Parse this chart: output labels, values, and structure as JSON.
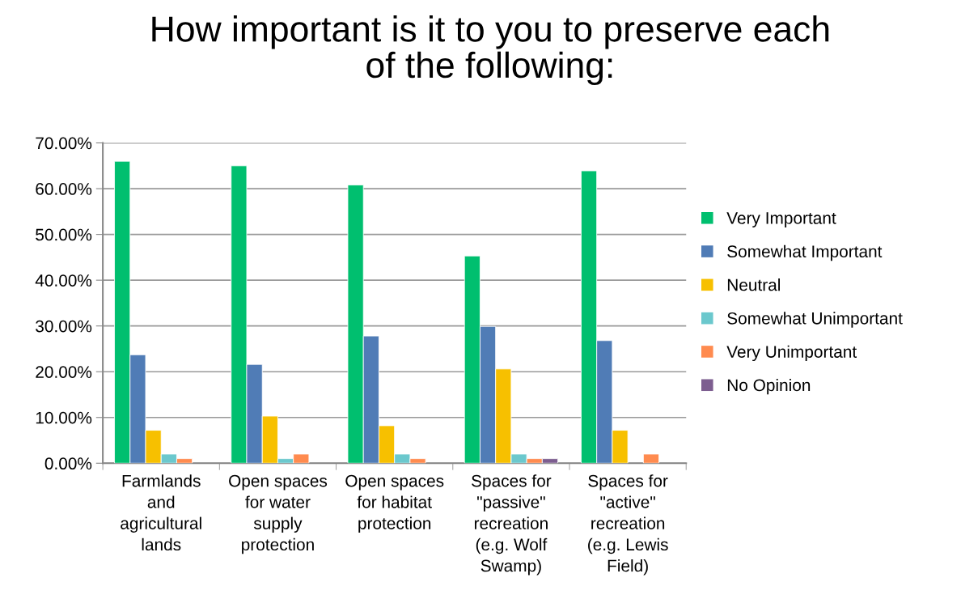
{
  "chart_data": {
    "type": "bar",
    "title": "How important is it to you to preserve each\nof the following:",
    "categories": [
      "Farmlands\nand\nagricultural\nlands",
      "Open spaces\nfor water\nsupply\nprotection",
      "Open spaces\nfor habitat\nprotection",
      "Spaces for\n\"passive\"\nrecreation\n(e.g. Wolf\nSwamp)",
      "Spaces for\n\"active\"\nrecreation\n(e.g. Lewis\nField)"
    ],
    "series": [
      {
        "name": "Very Important",
        "color": "#00bf6f",
        "values": [
          66,
          65,
          60.8,
          45.3,
          63.9
        ]
      },
      {
        "name": "Somewhat Important",
        "color": "#507cb6",
        "values": [
          23.7,
          21.6,
          27.8,
          29.9,
          26.8
        ]
      },
      {
        "name": "Neutral",
        "color": "#f7c000",
        "values": [
          7.2,
          10.3,
          8.2,
          20.6,
          7.2
        ]
      },
      {
        "name": "Somewhat Unimportant",
        "color": "#6bc8cd",
        "values": [
          2,
          1,
          2,
          2,
          null
        ]
      },
      {
        "name": "Very Unimportant",
        "color": "#ff8b4f",
        "values": [
          1,
          2,
          1,
          1,
          2
        ]
      },
      {
        "name": "No Opinion",
        "color": "#7d5e90",
        "values": [
          null,
          null,
          null,
          1,
          null
        ]
      }
    ],
    "ylim": [
      0,
      70
    ],
    "yticks": [
      {
        "value": 0,
        "label": "0.00%"
      },
      {
        "value": 10,
        "label": "10.00%"
      },
      {
        "value": 20,
        "label": "20.00%"
      },
      {
        "value": 30,
        "label": "30.00%"
      },
      {
        "value": 40,
        "label": "40.00%"
      },
      {
        "value": 50,
        "label": "50.00%"
      },
      {
        "value": 60,
        "label": "60.00%"
      },
      {
        "value": 70,
        "label": "70.00%"
      }
    ],
    "grid": "y",
    "legend": "right"
  }
}
